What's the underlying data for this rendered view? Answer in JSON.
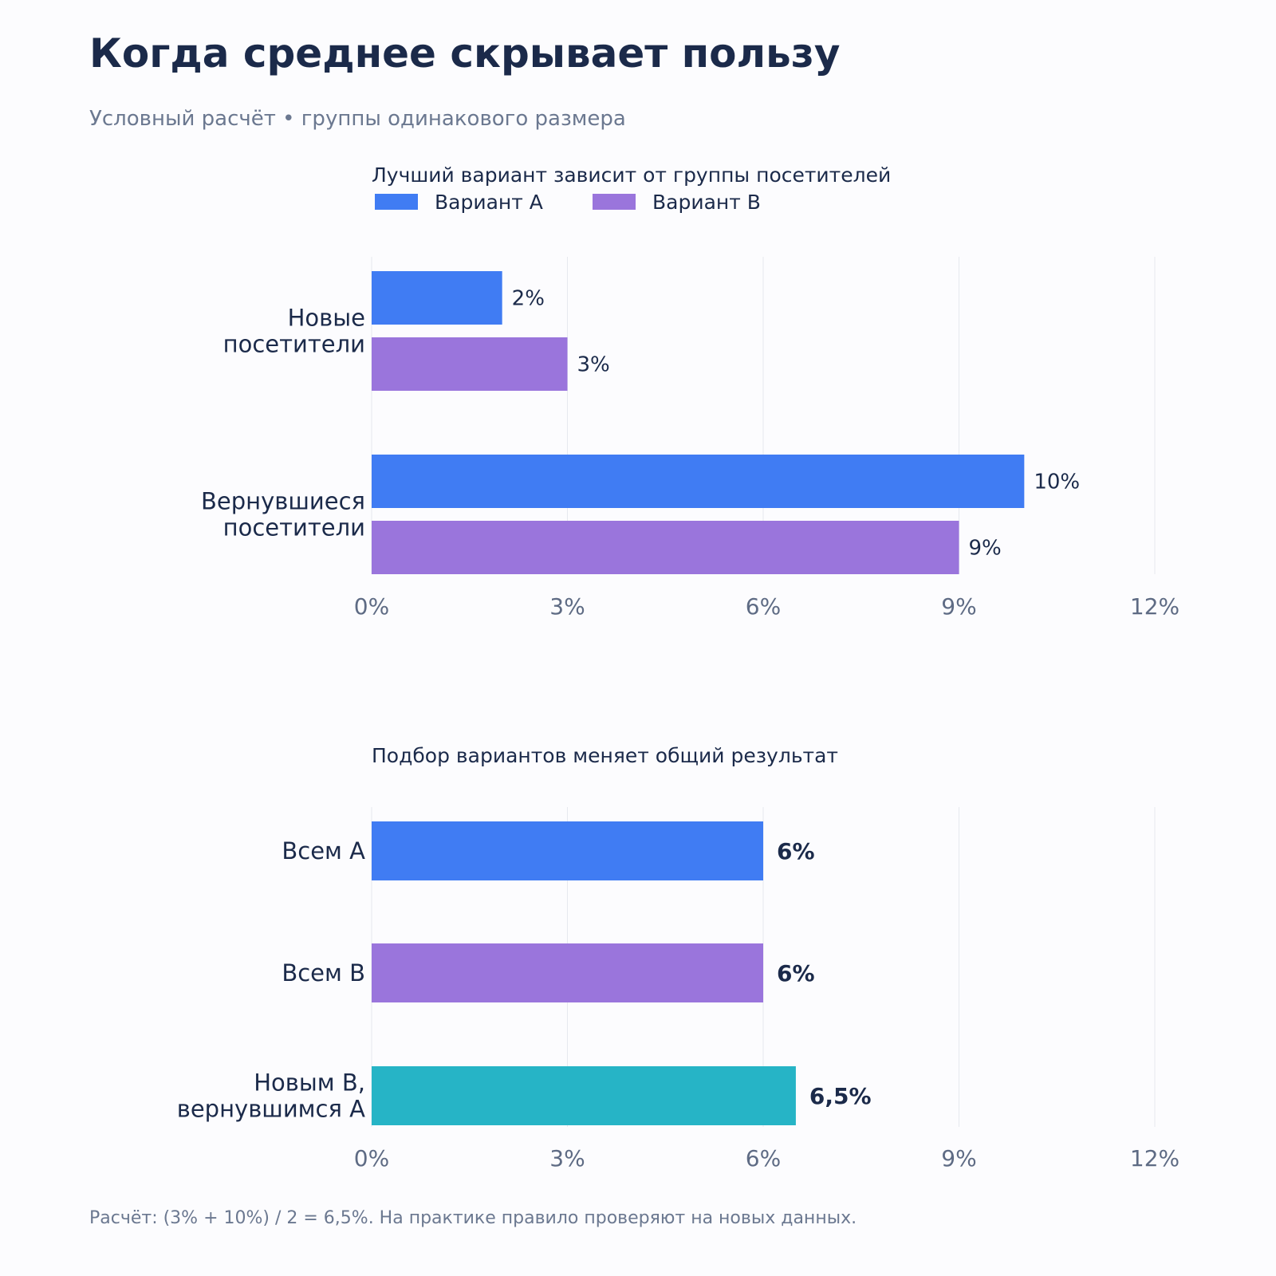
{
  "header": {
    "title": "Когда среднее скрывает пользу",
    "subtitle": "Условный расчёт • группы одинакового размера"
  },
  "footer": {
    "note": "Расчёт: (3% + 10%) / 2 = 6,5%. На практике правило проверяют на новых данных."
  },
  "colors": {
    "variant_a": "#407cf3",
    "variant_b": "#9a75dc",
    "mixed": "#26b4c6"
  },
  "chart_data": [
    {
      "type": "bar",
      "orientation": "horizontal",
      "title": "Лучший вариант зависит от группы посетителей",
      "categories": [
        [
          "Новые",
          "посетители"
        ],
        [
          "Вернувшиеся",
          "посетители"
        ]
      ],
      "series": [
        {
          "name": "Вариант A",
          "values": [
            2,
            10
          ],
          "labels": [
            "2%",
            "10%"
          ]
        },
        {
          "name": "Вариант B",
          "values": [
            3,
            9
          ],
          "labels": [
            "3%",
            "9%"
          ]
        }
      ],
      "xlim": [
        0,
        12
      ],
      "xticks": [
        0,
        3,
        6,
        9,
        12
      ],
      "xtick_labels": [
        "0%",
        "3%",
        "6%",
        "9%",
        "12%"
      ],
      "grid": "vertical",
      "legend": "top-left"
    },
    {
      "type": "bar",
      "orientation": "horizontal",
      "title": "Подбор вариантов меняет общий результат",
      "categories": [
        [
          "Всем A"
        ],
        [
          "Всем B"
        ],
        [
          "Новым B,",
          "вернувшимся A"
        ]
      ],
      "values": [
        6,
        6,
        6.5
      ],
      "labels": [
        "6%",
        "6%",
        "6,5%"
      ],
      "xlim": [
        0,
        12
      ],
      "xticks": [
        0,
        3,
        6,
        9,
        12
      ],
      "xtick_labels": [
        "0%",
        "3%",
        "6%",
        "9%",
        "12%"
      ],
      "grid": "vertical"
    }
  ]
}
